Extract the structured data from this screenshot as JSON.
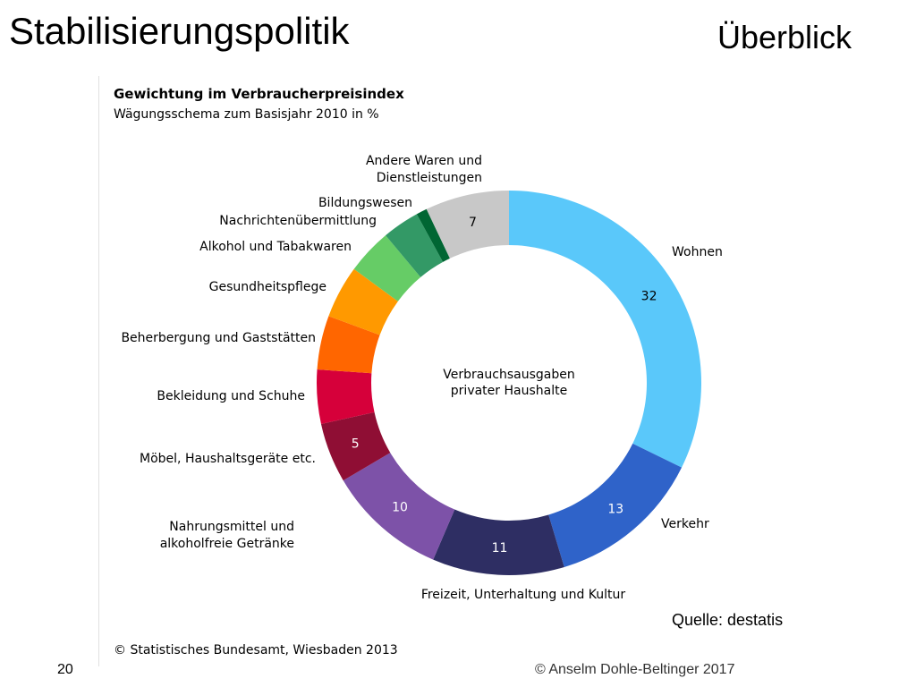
{
  "slide": {
    "title": "Stabilisierungspolitik",
    "subtitle": "Überblick",
    "source": "Quelle: destatis",
    "page_number": "20",
    "footer": "© Anselm Dohle-Beltinger 2017"
  },
  "chart_data": {
    "type": "pie",
    "title": "Gewichtung im Verbraucherpreisindex",
    "subtitle": "Wägungsschema zum Basisjahr 2010 in %",
    "center_label": [
      "Verbrauchsausgaben",
      "privater Haushalte"
    ],
    "copyright": "© Statistisches Bundesamt, Wiesbaden 2013",
    "total": 100,
    "slices": [
      {
        "label": "Wohnen",
        "value": 32,
        "value_label": "32",
        "color": "#5ac8fa"
      },
      {
        "label": "Verkehr",
        "value": 13,
        "value_label": "13",
        "color": "#2f63c9"
      },
      {
        "label": "Freizeit, Unterhaltung und Kultur",
        "value": 11,
        "value_label": "11",
        "color": "#2e2e63"
      },
      {
        "label": "Nahrungsmittel und alkoholfreie Getränke",
        "value": 10,
        "value_label": "10",
        "color": "#7d52a8"
      },
      {
        "label": "Möbel, Haushaltsgeräte etc.",
        "value": 5,
        "value_label": "5",
        "color": "#8f0e34"
      },
      {
        "label": "Bekleidung und Schuhe",
        "value": 4.5,
        "value_label": "",
        "color": "#d6003a"
      },
      {
        "label": "Beherbergung und Gaststätten",
        "value": 4.5,
        "value_label": "",
        "color": "#ff6600"
      },
      {
        "label": "Gesundheitspflege",
        "value": 4.4,
        "value_label": "",
        "color": "#ff9900"
      },
      {
        "label": "Alkohol und Tabakwaren",
        "value": 3.8,
        "value_label": "",
        "color": "#66cc66"
      },
      {
        "label": "Nachrichtenübermittlung",
        "value": 3.1,
        "value_label": "",
        "color": "#339966"
      },
      {
        "label": "Bildungswesen",
        "value": 0.9,
        "value_label": "",
        "color": "#006633"
      },
      {
        "label": "Andere Waren und Dienstleistungen",
        "value": 7,
        "value_label": "7",
        "color": "#c8c8c8"
      }
    ]
  }
}
